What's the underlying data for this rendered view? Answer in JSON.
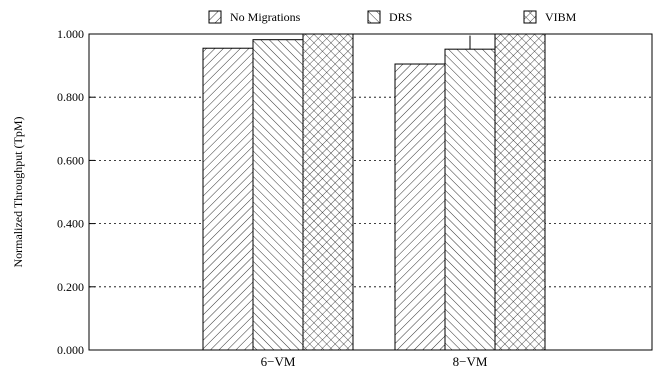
{
  "chart_data": {
    "type": "bar",
    "title": "",
    "xlabel": "",
    "ylabel": "Normalized Throughput (TpM)",
    "ylim": [
      0,
      1.0
    ],
    "yticks": [
      "0.000",
      "0.200",
      "0.400",
      "0.600",
      "0.800",
      "1.000"
    ],
    "grid": "horizontal dotted",
    "legend_position": "top",
    "categories": [
      "6−VM",
      "8−VM"
    ],
    "series": [
      {
        "name": "No Migrations",
        "pattern": "backslash-hatch",
        "values": [
          0.955,
          0.905
        ]
      },
      {
        "name": "DRS",
        "pattern": "slash-hatch",
        "values": [
          0.982,
          0.952
        ]
      },
      {
        "name": "VIBM",
        "pattern": "cross-hatch",
        "values": [
          1.0,
          1.0
        ]
      }
    ],
    "error_bars": [
      {
        "category": "8−VM",
        "series": "DRS",
        "upper": 0.995
      }
    ],
    "colors": {
      "axis": "#000000",
      "bar_fill": "#ffffff",
      "hatch": "#000000"
    }
  }
}
